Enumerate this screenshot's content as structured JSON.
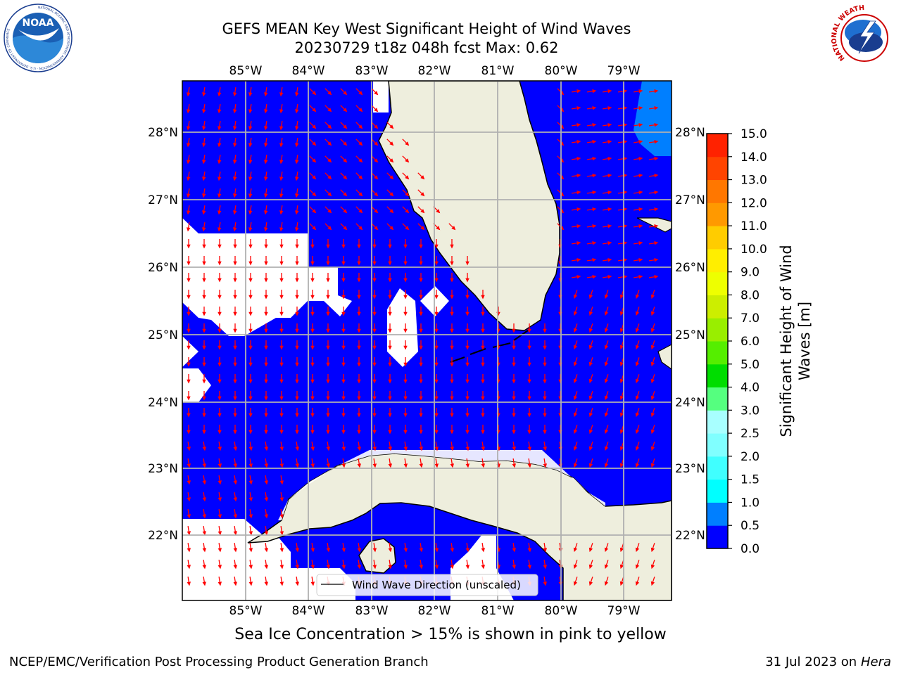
{
  "header": {
    "title_line1": "GEFS MEAN Key West Significant Height of Wind Waves",
    "title_line2": "20230729 t18z 048h fcst   Max: 0.62"
  },
  "logos": {
    "left": {
      "icon": "noaa-logo",
      "text": "NOAA",
      "ring_text": "NATIONAL OCEANIC AND ATMOSPHERIC ADMINISTRATION · U.S. DEPARTMENT OF COMMERCE"
    },
    "right": {
      "icon": "nws-logo",
      "ring_text": "NATIONAL WEATHER SERVICE"
    }
  },
  "map": {
    "lon_labels": [
      "85°W",
      "84°W",
      "83°W",
      "82°W",
      "81°W",
      "80°W",
      "79°W"
    ],
    "lat_labels": [
      "28°N",
      "27°N",
      "26°N",
      "25°N",
      "24°N",
      "23°N",
      "22°N"
    ],
    "legend_label": "Wind Wave Direction (unscaled)",
    "colors": {
      "water_0_05": "#0000ff",
      "water_05_10": "#007fff",
      "land": "#eeeedd",
      "arrow": "#ff0000",
      "coast": "#000000",
      "grid": "#b0b0b0"
    }
  },
  "colorbar": {
    "label": "Significant Height of Wind Waves [m]",
    "label_line1": "Significant Height of Wind",
    "label_line2": "Waves [m]",
    "ticks": [
      "0.0",
      "0.5",
      "1.0",
      "1.5",
      "2.0",
      "2.5",
      "3.0",
      "4.0",
      "5.0",
      "6.0",
      "7.0",
      "8.0",
      "9.0",
      "10.0",
      "11.0",
      "12.0",
      "13.0",
      "14.0",
      "15.0"
    ],
    "colors": [
      "#0000ff",
      "#007fff",
      "#00ffff",
      "#40ffff",
      "#80ffff",
      "#a8ffff",
      "#55ff7f",
      "#00dd00",
      "#55ee00",
      "#99ee00",
      "#ccee00",
      "#eeff00",
      "#ffee00",
      "#ffcc00",
      "#ff9900",
      "#ff7700",
      "#ff4400",
      "#ff2200"
    ]
  },
  "subnote": "Sea Ice Concentration > 15% is shown in pink to yellow",
  "footer": {
    "left": "NCEP/EMC/Verification Post Processing Product Generation Branch",
    "right_date": "31 Jul 2023 on ",
    "right_host": "Hera"
  }
}
